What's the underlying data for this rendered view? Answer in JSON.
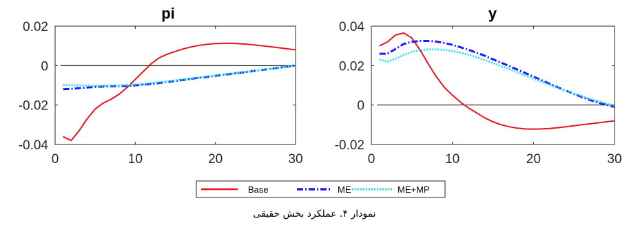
{
  "caption": "نمودار ۴. عملکرد بخش حقیقی",
  "legend": {
    "items": [
      {
        "label": "Base",
        "color": "#e8141c",
        "style": "solid"
      },
      {
        "label": "ME",
        "color": "#1a1aff",
        "style": "dashdot"
      },
      {
        "label": "ME+MP",
        "color": "#22e5f5",
        "style": "dotted"
      }
    ]
  },
  "chart_data": [
    {
      "type": "line",
      "title": "pi",
      "xlabel": "",
      "ylabel": "",
      "xlim": [
        0,
        30
      ],
      "ylim": [
        -0.04,
        0.02
      ],
      "xticks": [
        0,
        10,
        20,
        30
      ],
      "yticks": [
        -0.04,
        -0.02,
        0,
        0.02
      ],
      "ytick_labels": [
        "-0.04",
        "-0.02",
        "0",
        "0.02"
      ],
      "zero_line": true,
      "grid": false,
      "x": [
        1,
        2,
        3,
        4,
        5,
        6,
        7,
        8,
        9,
        10,
        11,
        12,
        13,
        14,
        15,
        16,
        17,
        18,
        19,
        20,
        21,
        22,
        23,
        24,
        25,
        26,
        27,
        28,
        29,
        30
      ],
      "series": [
        {
          "name": "Base",
          "values": [
            -0.036,
            -0.038,
            -0.033,
            -0.027,
            -0.022,
            -0.019,
            -0.017,
            -0.0145,
            -0.011,
            -0.007,
            -0.003,
            0.001,
            0.004,
            0.0058,
            0.0072,
            0.0085,
            0.0095,
            0.0103,
            0.0108,
            0.0112,
            0.0113,
            0.0113,
            0.0111,
            0.0108,
            0.0104,
            0.01,
            0.0095,
            0.009,
            0.0085,
            0.008
          ]
        },
        {
          "name": "ME",
          "values": [
            -0.012,
            -0.0118,
            -0.0114,
            -0.0111,
            -0.0108,
            -0.0106,
            -0.0105,
            -0.0104,
            -0.0103,
            -0.01,
            -0.0097,
            -0.0093,
            -0.0088,
            -0.0083,
            -0.0078,
            -0.0073,
            -0.0067,
            -0.0062,
            -0.0057,
            -0.0052,
            -0.0047,
            -0.0042,
            -0.0037,
            -0.0032,
            -0.0026,
            -0.0021,
            -0.0016,
            -0.001,
            -0.0005,
            0.0
          ]
        },
        {
          "name": "ME+MP",
          "values": [
            -0.0098,
            -0.0099,
            -0.01,
            -0.0101,
            -0.0102,
            -0.0102,
            -0.0101,
            -0.01,
            -0.0098,
            -0.0095,
            -0.0092,
            -0.0088,
            -0.0084,
            -0.008,
            -0.0075,
            -0.007,
            -0.0065,
            -0.006,
            -0.0055,
            -0.005,
            -0.0045,
            -0.004,
            -0.0035,
            -0.003,
            -0.0025,
            -0.002,
            -0.0015,
            -0.001,
            -0.0005,
            0.0
          ]
        }
      ]
    },
    {
      "type": "line",
      "title": "y",
      "xlabel": "",
      "ylabel": "",
      "xlim": [
        0,
        30
      ],
      "ylim": [
        -0.02,
        0.04
      ],
      "xticks": [
        0,
        10,
        20,
        30
      ],
      "yticks": [
        -0.02,
        0,
        0.02,
        0.04
      ],
      "ytick_labels": [
        "-0.02",
        "0",
        "0.02",
        "0.04"
      ],
      "zero_line": true,
      "grid": false,
      "x": [
        1,
        2,
        3,
        4,
        5,
        6,
        7,
        8,
        9,
        10,
        11,
        12,
        13,
        14,
        15,
        16,
        17,
        18,
        19,
        20,
        21,
        22,
        23,
        24,
        25,
        26,
        27,
        28,
        29,
        30
      ],
      "series": [
        {
          "name": "Base",
          "values": [
            0.03,
            0.032,
            0.0355,
            0.0365,
            0.034,
            0.028,
            0.021,
            0.0145,
            0.009,
            0.005,
            0.0015,
            -0.0015,
            -0.004,
            -0.0065,
            -0.0085,
            -0.01,
            -0.011,
            -0.0117,
            -0.0121,
            -0.0122,
            -0.0121,
            -0.0119,
            -0.0115,
            -0.011,
            -0.0105,
            -0.01,
            -0.0095,
            -0.009,
            -0.0085,
            -0.008
          ]
        },
        {
          "name": "ME",
          "values": [
            0.026,
            0.026,
            0.0285,
            0.031,
            0.032,
            0.0325,
            0.0325,
            0.0322,
            0.0315,
            0.0305,
            0.0293,
            0.028,
            0.0265,
            0.025,
            0.0232,
            0.0215,
            0.0198,
            0.018,
            0.0162,
            0.0144,
            0.0126,
            0.0108,
            0.009,
            0.0073,
            0.0056,
            0.004,
            0.0025,
            0.0012,
            0.0002,
            -0.001
          ]
        },
        {
          "name": "ME+MP",
          "values": [
            0.023,
            0.022,
            0.0235,
            0.0255,
            0.027,
            0.0278,
            0.0282,
            0.0282,
            0.028,
            0.0274,
            0.0265,
            0.0255,
            0.0242,
            0.0228,
            0.0213,
            0.0198,
            0.0182,
            0.0166,
            0.015,
            0.0134,
            0.0118,
            0.0102,
            0.0087,
            0.0072,
            0.0058,
            0.0044,
            0.0031,
            0.0019,
            0.0008,
            -0.0003
          ]
        }
      ]
    }
  ]
}
